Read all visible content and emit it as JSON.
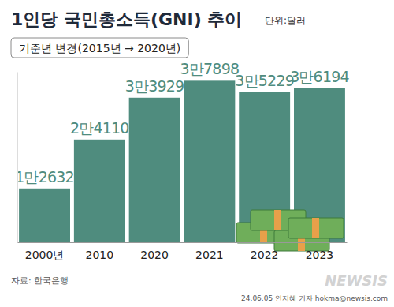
{
  "chart_data": {
    "type": "bar",
    "title": "1인당 국민총소득(GNI) 추이",
    "subtitle": "기준년 변경(2015년 → 2020년)",
    "annotations": [
      "단위:달러",
      "자료: 한국은행",
      "24.06.05 안지혜 기자 hokma@newsis.com",
      "NEWSIS"
    ],
    "categories": [
      "2000년",
      "2010",
      "2020",
      "2021",
      "2022",
      "2023"
    ],
    "values": [
      12632,
      24110,
      33929,
      37898,
      35229,
      36194
    ],
    "value_labels": [
      "1만2632",
      "2만4110",
      "3만3929",
      "3만7898",
      "3만5229",
      "3만6194"
    ],
    "color": "#4f8c7e",
    "ylim": [
      0,
      40000
    ],
    "data_labels": true,
    "tick_labels": "x",
    "grid": false
  }
}
